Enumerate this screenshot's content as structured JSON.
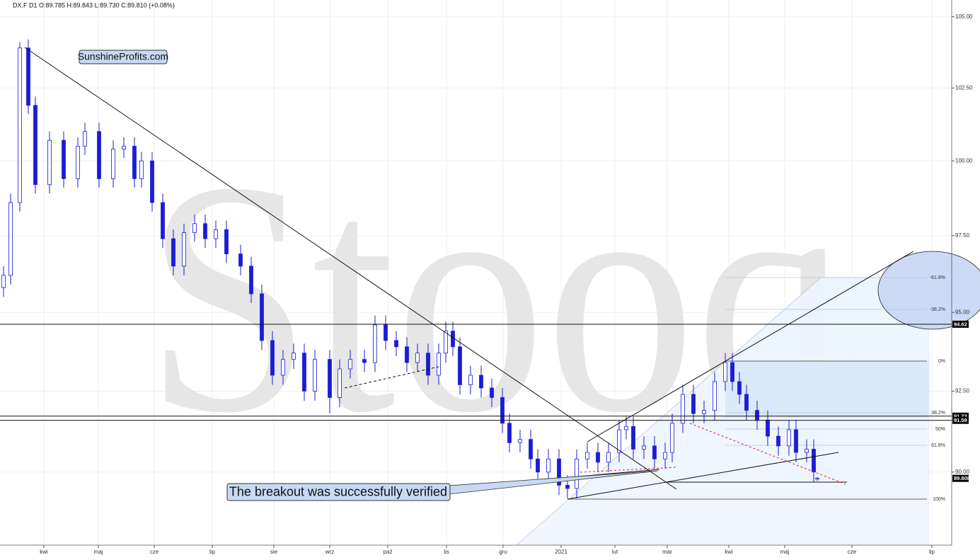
{
  "chart_data": {
    "type": "candlestick",
    "header": "DX.F  D1  O:89.785  H:89.843  L:89.730  C:89.810  (+0.08%)",
    "watermark": "Stooq",
    "brand": "SunshineProfits.com",
    "annotation": "The breakout was successfully verified",
    "log_scale": true,
    "grid": true,
    "color": "#1c1cd6",
    "ylim": [
      87.8,
      105.6
    ],
    "yticks": [
      {
        "value": 105,
        "label": "105.00"
      },
      {
        "value": 102.5,
        "label": "102.50"
      },
      {
        "value": 100,
        "label": "100.00"
      },
      {
        "value": 97.5,
        "label": "97.50"
      },
      {
        "value": 95,
        "label": "95.00"
      },
      {
        "value": 92.5,
        "label": "92.50"
      },
      {
        "value": 90,
        "label": "90.00"
      }
    ],
    "xlim": [
      0,
      1345
    ],
    "xticks": [
      {
        "value": 62,
        "label": "kwi"
      },
      {
        "value": 139,
        "label": "maj"
      },
      {
        "value": 218,
        "label": "cze"
      },
      {
        "value": 300,
        "label": "lip"
      },
      {
        "value": 387,
        "label": "sie"
      },
      {
        "value": 466,
        "label": "wrz"
      },
      {
        "value": 548,
        "label": "paź"
      },
      {
        "value": 631,
        "label": "lis"
      },
      {
        "value": 711,
        "label": "gru"
      },
      {
        "value": 793,
        "label": "2021"
      },
      {
        "value": 869,
        "label": "lut"
      },
      {
        "value": 943,
        "label": "mar"
      },
      {
        "value": 1030,
        "label": "kwi"
      },
      {
        "value": 1109,
        "label": "maj"
      },
      {
        "value": 1204,
        "label": "cze"
      },
      {
        "value": 1317,
        "label": "lip"
      }
    ],
    "x": [
      5,
      15,
      28,
      40,
      50,
      70,
      90,
      110,
      120,
      140,
      160,
      175,
      190,
      200,
      215,
      230,
      245,
      260,
      275,
      290,
      305,
      320,
      340,
      355,
      370,
      385,
      400,
      415,
      430,
      445,
      466,
      480,
      495,
      515,
      530,
      545,
      560,
      575,
      590,
      605,
      620,
      630,
      640,
      650,
      665,
      680,
      695,
      710,
      720,
      735,
      750,
      760,
      775,
      790,
      802,
      815,
      830,
      845,
      860,
      875,
      885,
      895,
      910,
      925,
      940,
      950,
      965,
      980,
      995,
      1010,
      1025,
      1035,
      1045,
      1055,
      1070,
      1085,
      1100,
      1115,
      1125,
      1140,
      1150,
      1155
    ],
    "open": [
      95.8,
      96.2,
      98.6,
      103.9,
      101.9,
      99.2,
      100.7,
      99.4,
      100.5,
      101.0,
      99.4,
      100.4,
      100.5,
      99.4,
      100.0,
      98.6,
      97.4,
      96.5,
      97.6,
      97.9,
      97.4,
      97.7,
      96.9,
      96.5,
      95.6,
      94.1,
      93.0,
      93.5,
      93.7,
      92.5,
      93.5,
      92.3,
      93.2,
      93.5,
      93.4,
      94.6,
      94.1,
      93.9,
      93.4,
      93.7,
      93.0,
      93.7,
      94.4,
      93.9,
      92.7,
      93.0,
      92.6,
      92.3,
      91.5,
      90.9,
      91.0,
      90.4,
      90.0,
      90.4,
      89.6,
      89.5,
      90.4,
      90.6,
      90.3,
      90.6,
      91.3,
      91.4,
      90.7,
      90.8,
      90.4,
      90.6,
      91.5,
      92.4,
      91.8,
      91.9,
      92.8,
      93.4,
      92.8,
      92.4,
      91.9,
      91.6,
      91.1,
      90.8,
      91.3,
      90.6,
      90.7,
      89.785
    ],
    "high": [
      96.5,
      98.9,
      104.1,
      104.2,
      102.2,
      101.0,
      101.0,
      100.8,
      101.3,
      101.3,
      100.7,
      100.8,
      100.8,
      100.3,
      100.3,
      98.9,
      97.7,
      97.9,
      98.2,
      98.2,
      98.0,
      98.0,
      97.2,
      96.8,
      95.9,
      94.4,
      93.8,
      94.0,
      94.0,
      93.8,
      93.8,
      93.5,
      93.8,
      93.8,
      94.9,
      94.9,
      94.4,
      94.2,
      94.0,
      94.0,
      94.0,
      94.7,
      94.7,
      94.2,
      93.3,
      93.3,
      92.9,
      92.6,
      91.8,
      91.3,
      91.3,
      90.7,
      90.7,
      90.7,
      89.9,
      90.7,
      90.9,
      90.9,
      90.9,
      91.6,
      91.7,
      91.7,
      91.1,
      91.1,
      90.9,
      91.8,
      92.7,
      92.7,
      92.2,
      93.1,
      93.7,
      93.7,
      93.1,
      92.7,
      92.2,
      91.9,
      91.4,
      91.6,
      91.6,
      91.0,
      91.0,
      89.843
    ],
    "low": [
      95.5,
      95.9,
      98.3,
      101.6,
      98.9,
      98.9,
      99.1,
      99.1,
      100.2,
      99.1,
      99.1,
      100.1,
      99.1,
      99.1,
      98.3,
      97.1,
      96.2,
      96.2,
      97.3,
      97.1,
      97.1,
      96.6,
      96.2,
      95.3,
      93.8,
      92.7,
      92.7,
      93.2,
      92.2,
      92.2,
      91.8,
      92.0,
      92.9,
      93.1,
      93.1,
      93.8,
      93.6,
      93.1,
      93.1,
      92.7,
      92.7,
      93.4,
      93.6,
      92.4,
      92.4,
      92.3,
      92.0,
      91.2,
      90.6,
      90.6,
      90.1,
      89.7,
      89.7,
      89.3,
      89.2,
      89.2,
      90.1,
      90.0,
      90.0,
      90.3,
      91.0,
      90.4,
      90.4,
      90.1,
      90.1,
      90.3,
      91.2,
      91.5,
      91.5,
      91.6,
      92.5,
      92.5,
      92.1,
      91.6,
      91.3,
      90.8,
      90.5,
      90.5,
      90.3,
      90.3,
      89.7,
      89.73
    ],
    "close": [
      96.2,
      98.6,
      103.9,
      101.9,
      99.2,
      100.7,
      99.4,
      100.5,
      101.0,
      99.4,
      100.4,
      100.5,
      99.4,
      100.0,
      98.6,
      97.4,
      96.5,
      97.6,
      97.9,
      97.4,
      97.7,
      96.9,
      96.5,
      95.6,
      94.1,
      93.0,
      93.5,
      93.7,
      92.5,
      93.5,
      92.3,
      93.2,
      93.5,
      93.4,
      94.6,
      94.1,
      93.9,
      93.4,
      93.7,
      93.0,
      93.7,
      94.4,
      93.9,
      92.7,
      93.0,
      92.6,
      92.3,
      91.5,
      90.9,
      91.0,
      90.4,
      90.0,
      90.4,
      89.6,
      89.5,
      90.4,
      90.6,
      90.3,
      90.6,
      91.3,
      91.4,
      90.7,
      90.8,
      90.4,
      90.6,
      91.5,
      92.4,
      91.8,
      91.9,
      92.8,
      93.4,
      92.8,
      92.4,
      91.9,
      91.6,
      91.1,
      90.8,
      91.3,
      90.6,
      90.7,
      90.0,
      89.81
    ],
    "price_lines": [
      94.62,
      91.72,
      91.59
    ],
    "price_labels": [
      94.62,
      91.72,
      91.59,
      89.808
    ],
    "fib_labels": [
      "-61.8%",
      "-38.2%",
      "0%",
      "38.2%",
      "50%",
      "61.8%",
      "100%"
    ]
  }
}
